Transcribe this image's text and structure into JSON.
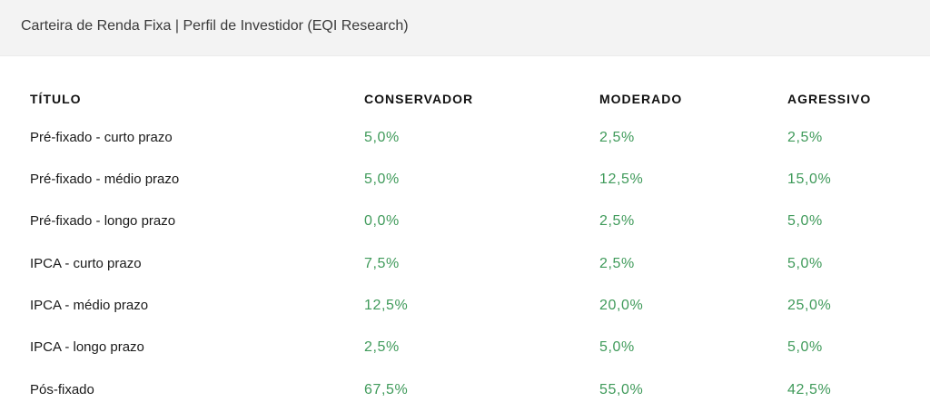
{
  "header": {
    "title": "Carteira de Renda Fixa | Perfil de Investidor (EQI Research)"
  },
  "table": {
    "columns": [
      "TÍTULO",
      "CONSERVADOR",
      "MODERADO",
      "AGRESSIVO"
    ],
    "rows": [
      [
        "Pré-fixado - curto prazo",
        "5,0%",
        "2,5%",
        "2,5%"
      ],
      [
        "Pré-fixado - médio prazo",
        "5,0%",
        "12,5%",
        "15,0%"
      ],
      [
        "Pré-fixado - longo prazo",
        "0,0%",
        "2,5%",
        "5,0%"
      ],
      [
        "IPCA - curto prazo",
        "7,5%",
        "2,5%",
        "5,0%"
      ],
      [
        "IPCA - médio prazo",
        "12,5%",
        "20,0%",
        "25,0%"
      ],
      [
        "IPCA - longo prazo",
        "2,5%",
        "5,0%",
        "5,0%"
      ],
      [
        "Pós-fixado",
        "67,5%",
        "55,0%",
        "42,5%"
      ]
    ]
  },
  "colors": {
    "header_background": "#f3f3f3",
    "value_green": "#3f9a5a"
  }
}
